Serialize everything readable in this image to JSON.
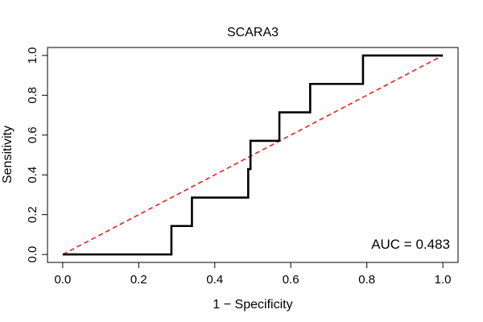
{
  "chart_data": {
    "type": "line",
    "title": "SCARA3",
    "xlabel": "1 − Specificity",
    "ylabel": "Sensitivity",
    "xlim": [
      -0.04,
      1.04
    ],
    "ylim": [
      -0.04,
      1.04
    ],
    "xticks": [
      "0.0",
      "0.2",
      "0.4",
      "0.6",
      "0.8",
      "1.0"
    ],
    "yticks": [
      "0.0",
      "0.2",
      "0.4",
      "0.6",
      "0.8",
      "1.0"
    ],
    "grid": false,
    "annotation": "AUC = 0.483",
    "series": [
      {
        "color": "#000000",
        "style": "solid",
        "x": [
          0.0,
          0.286,
          0.286,
          0.34,
          0.34,
          0.488,
          0.488,
          0.494,
          0.494,
          0.57,
          0.57,
          0.651,
          0.651,
          0.79,
          0.79,
          1.0
        ],
        "y": [
          0.0,
          0.0,
          0.143,
          0.143,
          0.286,
          0.286,
          0.429,
          0.429,
          0.571,
          0.571,
          0.714,
          0.714,
          0.857,
          0.857,
          1.0,
          1.0
        ]
      },
      {
        "color": "#e8231f",
        "style": "dashed",
        "x": [
          0.0,
          1.0
        ],
        "y": [
          0.0,
          1.0
        ]
      }
    ]
  }
}
